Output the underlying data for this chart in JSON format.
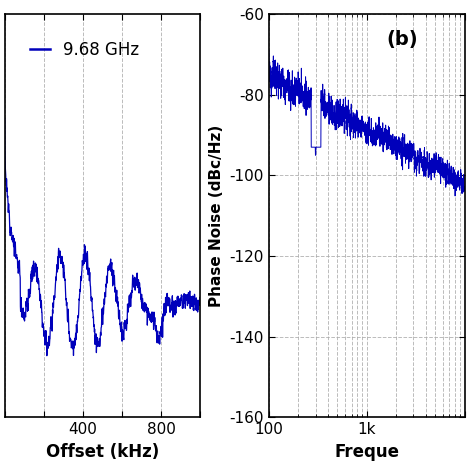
{
  "panel_a": {
    "xlabel": "Offset (kHz)",
    "legend_label": "9.68 GHz",
    "xlim": [
      0,
      1000
    ],
    "line_color": "#0000BB",
    "grid_color": "#aaaaaa",
    "xticks": [
      0,
      200,
      400,
      600,
      800,
      1000
    ],
    "xtick_labels": [
      "",
      "",
      "400",
      "",
      "800",
      ""
    ]
  },
  "panel_b": {
    "xlabel": "Freque",
    "ylabel": "Phase Noise (dBc/Hz)",
    "annotation": "(b)",
    "xlim": [
      100,
      10000
    ],
    "ylim": [
      -160,
      -60
    ],
    "yticks": [
      -160,
      -140,
      -120,
      -100,
      -80,
      -60
    ],
    "xticks": [
      100,
      1000,
      10000
    ],
    "xtick_labels": [
      "100",
      "1k",
      ""
    ],
    "line_color": "#0000BB",
    "grid_color": "#aaaaaa"
  },
  "figure": {
    "bg_color": "#ffffff",
    "line_color": "#0000BB",
    "font_size": 12,
    "tick_font_size": 11,
    "legend_font_size": 12
  }
}
